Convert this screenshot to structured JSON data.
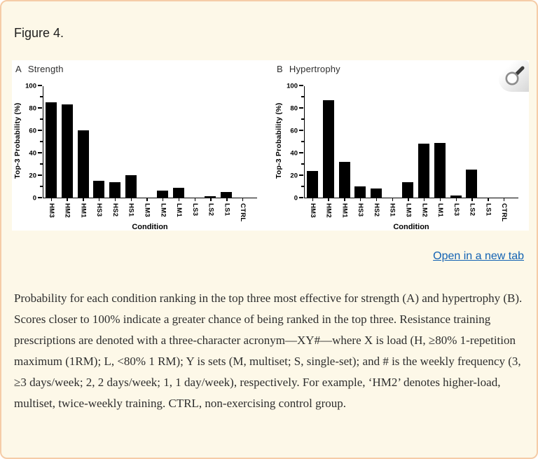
{
  "page": {
    "figure_label": "Figure 4.",
    "open_in_new_tab": "Open in a new tab",
    "caption": "Probability for each condition ranking in the top three most effective for strength (A) and hypertrophy (B). Scores closer to 100% indicate a greater chance of being ranked in the top three. Resistance training prescriptions are denoted with a three-character acronym—XY#—where X is load (H, ≥80% 1-repetition maximum (1RM); L, <80% 1 RM); Y is sets (M, multiset; S, single-set); and # is the weekly frequency (3, ≥3 days/week; 2, 2 days/week; 1, 1 day/week), respectively. For example, ‘HM2’ denotes higher-load, multiset, twice-weekly training. CTRL, non-exercising control group."
  },
  "figure": {
    "zoom_button_icon": "magnifier-icon"
  },
  "colors": {
    "page_bg": "#fdf8e8",
    "card_border": "#f5cca7",
    "figure_bg": "#ffffff",
    "bar": "#000000",
    "link": "#1262b3",
    "caption_text": "#2d2d2d"
  },
  "chart_data": [
    {
      "type": "bar",
      "panel": "A",
      "title": "Strength",
      "categories": [
        "HM3",
        "HM2",
        "HM1",
        "HS3",
        "HS2",
        "HS1",
        "LM3",
        "LM2",
        "LM1",
        "LS3",
        "LS2",
        "LS1",
        "CTRL"
      ],
      "values": [
        85,
        83,
        60,
        15,
        14,
        20,
        0,
        6,
        9,
        0,
        1,
        5,
        0
      ],
      "xlabel": "Condition",
      "ylabel": "Top-3 Probability (%)",
      "ylim": [
        0,
        100
      ],
      "yticks": [
        0,
        20,
        40,
        60,
        80,
        100
      ],
      "minor_ticks": [
        10,
        30,
        50,
        70,
        90
      ],
      "grid": false,
      "bar_color": "#000000"
    },
    {
      "type": "bar",
      "panel": "B",
      "title": "Hypertrophy",
      "categories": [
        "HM3",
        "HM2",
        "HM1",
        "HS3",
        "HS2",
        "HS1",
        "LM3",
        "LM2",
        "LM1",
        "LS3",
        "LS2",
        "LS1",
        "CTRL"
      ],
      "values": [
        24,
        87,
        32,
        10,
        8,
        0,
        14,
        48,
        49,
        2,
        25,
        0,
        0
      ],
      "xlabel": "Condition",
      "ylabel": "Top-3 Probability (%)",
      "ylim": [
        0,
        100
      ],
      "yticks": [
        0,
        20,
        40,
        60,
        80,
        100
      ],
      "minor_ticks": [
        10,
        30,
        50,
        70,
        90
      ],
      "grid": false,
      "bar_color": "#000000"
    }
  ]
}
